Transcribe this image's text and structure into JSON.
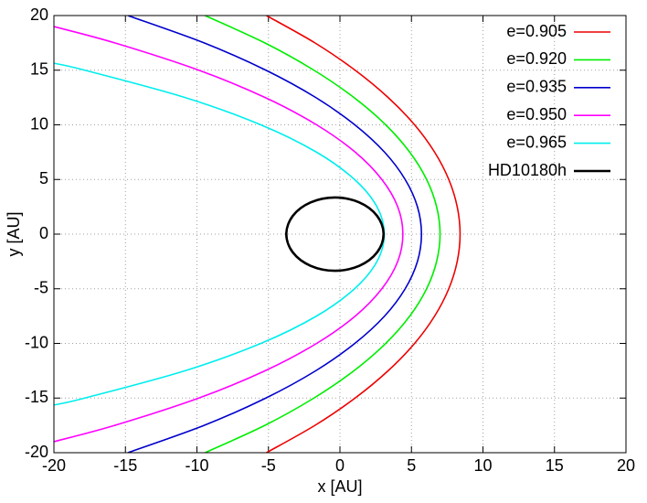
{
  "chart_data": {
    "type": "line",
    "xlabel": "x [AU]",
    "ylabel": "y [AU]",
    "xlim": [
      -20,
      20
    ],
    "ylim": [
      -20,
      20
    ],
    "xticks": [
      -20,
      -15,
      -10,
      -5,
      0,
      5,
      10,
      15,
      20
    ],
    "yticks": [
      -20,
      -15,
      -10,
      -5,
      0,
      5,
      10,
      15,
      20
    ],
    "grid": true,
    "legend": "top-right",
    "series": [
      {
        "name": "e=0.905",
        "color": "#ee0000",
        "x": [
          -5.14,
          -1.75,
          1.06,
          3.37,
          5.22,
          6.62,
          7.61,
          8.2,
          8.4,
          8.2,
          7.61,
          6.62,
          5.22,
          3.37,
          1.06,
          -1.75,
          -5.14
        ],
        "values": [
          -20,
          -17.5,
          -15,
          -12.5,
          -10,
          -7.5,
          -5,
          -2.5,
          0,
          2.5,
          5,
          7.5,
          10,
          12.5,
          15,
          17.5,
          20
        ]
      },
      {
        "name": "e=0.920",
        "color": "#00ee00",
        "x": [
          -9.43,
          -5.25,
          -1.82,
          0.98,
          3.2,
          4.88,
          6.06,
          6.76,
          7.0,
          6.76,
          6.06,
          4.88,
          3.2,
          0.98,
          -1.82,
          -5.25,
          -9.43
        ],
        "values": [
          -20,
          -17.5,
          -15,
          -12.5,
          -10,
          -7.5,
          -5,
          -2.5,
          0,
          2.5,
          5,
          7.5,
          10,
          12.5,
          15,
          17.5,
          20
        ]
      },
      {
        "name": "e=0.935",
        "color": "#0000cc",
        "x": [
          -14.83,
          -9.5,
          -5.18,
          -1.69,
          1.04,
          3.12,
          4.56,
          5.42,
          5.7,
          5.42,
          4.56,
          3.12,
          1.04,
          -1.69,
          -5.18,
          -9.5,
          -14.83
        ],
        "values": [
          -20,
          -17.5,
          -15,
          -12.5,
          -10,
          -7.5,
          -5,
          -2.5,
          0,
          2.5,
          5,
          7.5,
          10,
          12.5,
          15,
          17.5,
          20
        ]
      },
      {
        "name": "e=0.950",
        "color": "#ff00ff",
        "x": [
          -20,
          -15.75,
          -9.87,
          -5.23,
          -1.63,
          1.07,
          2.93,
          4.04,
          4.4,
          4.04,
          2.93,
          1.07,
          -1.63,
          -5.23,
          -9.87,
          -15.75,
          -20
        ],
        "values": [
          -18.99,
          -17.5,
          -15,
          -12.5,
          -10,
          -7.5,
          -5,
          -2.5,
          0,
          2.5,
          5,
          7.5,
          10,
          12.5,
          15,
          17.5,
          18.99
        ]
      },
      {
        "name": "e=0.965",
        "color": "#00eeee",
        "x": [
          -20,
          -17.84,
          -10.83,
          -5.53,
          -1.64,
          1.02,
          2.59,
          3.1,
          2.59,
          1.02,
          -1.64,
          -5.53,
          -10.83,
          -17.84,
          -20
        ],
        "values": [
          -15.64,
          -15,
          -12.5,
          -10,
          -7.5,
          -5,
          -2.5,
          0,
          2.5,
          5,
          7.5,
          10,
          12.5,
          15,
          15.64
        ]
      },
      {
        "name": "HD10180h",
        "color": "#000000",
        "x": [
          3.05,
          2.59,
          1.35,
          -0.35,
          -2.05,
          -3.29,
          -3.75,
          -3.29,
          -2.05,
          -0.35,
          1.35,
          2.59,
          3.05
        ],
        "values": [
          0,
          1.68,
          2.9,
          3.35,
          2.9,
          1.68,
          0,
          -1.68,
          -2.9,
          -3.35,
          -2.9,
          -1.68,
          0
        ]
      }
    ]
  }
}
